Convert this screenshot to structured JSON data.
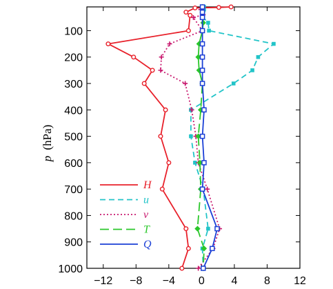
{
  "chart_data": {
    "type": "line",
    "ylabel_var": "p",
    "ylabel_unit": "(hPa)",
    "xlabel": "",
    "xlim": [
      -14,
      12
    ],
    "ylim": [
      1000,
      10
    ],
    "y_reversed": true,
    "xticks": [
      -12,
      -8,
      -4,
      0,
      4,
      8,
      12
    ],
    "yticks": [
      100,
      200,
      300,
      400,
      500,
      600,
      700,
      800,
      900,
      1000
    ],
    "legend_position": "lower-left",
    "series": [
      {
        "name": "H",
        "color": "#e8202a",
        "dash": "solid",
        "marker": "circle",
        "points": [
          {
            "x": 3.6,
            "y": 10
          },
          {
            "x": 2.1,
            "y": 12
          },
          {
            "x": -0.8,
            "y": 14
          },
          {
            "x": -1.9,
            "y": 30
          },
          {
            "x": -1.4,
            "y": 42
          },
          {
            "x": -1.6,
            "y": 100
          },
          {
            "x": -11.4,
            "y": 150
          },
          {
            "x": -8.3,
            "y": 200
          },
          {
            "x": -6.0,
            "y": 250
          },
          {
            "x": -7.0,
            "y": 300
          },
          {
            "x": -4.4,
            "y": 400
          },
          {
            "x": -5.0,
            "y": 500
          },
          {
            "x": -4.0,
            "y": 600
          },
          {
            "x": -4.8,
            "y": 700
          },
          {
            "x": -1.9,
            "y": 850
          },
          {
            "x": -1.6,
            "y": 925
          },
          {
            "x": -2.4,
            "y": 1000
          }
        ]
      },
      {
        "name": "u",
        "color": "#22c4c8",
        "dash": "dash",
        "marker": "square",
        "points": [
          {
            "x": 0.3,
            "y": 10
          },
          {
            "x": 0.3,
            "y": 20
          },
          {
            "x": 0.2,
            "y": 30
          },
          {
            "x": 0.2,
            "y": 50
          },
          {
            "x": 0.8,
            "y": 70
          },
          {
            "x": 0.9,
            "y": 100
          },
          {
            "x": 8.8,
            "y": 150
          },
          {
            "x": 6.9,
            "y": 200
          },
          {
            "x": 6.2,
            "y": 250
          },
          {
            "x": 3.9,
            "y": 300
          },
          {
            "x": -1.3,
            "y": 400
          },
          {
            "x": -1.3,
            "y": 500
          },
          {
            "x": -0.8,
            "y": 600
          },
          {
            "x": 0.2,
            "y": 700
          },
          {
            "x": 0.8,
            "y": 850
          },
          {
            "x": 0.1,
            "y": 925
          },
          {
            "x": 0.2,
            "y": 1000
          }
        ]
      },
      {
        "name": "v",
        "color": "#c8186e",
        "dash": "dot",
        "marker": "plus",
        "points": [
          {
            "x": 0.2,
            "y": 12
          },
          {
            "x": -0.1,
            "y": 20
          },
          {
            "x": 0.2,
            "y": 40
          },
          {
            "x": -1.0,
            "y": 50
          },
          {
            "x": 0.1,
            "y": 100
          },
          {
            "x": -3.9,
            "y": 150
          },
          {
            "x": -4.9,
            "y": 200
          },
          {
            "x": -5.0,
            "y": 250
          },
          {
            "x": -2.0,
            "y": 300
          },
          {
            "x": -1.2,
            "y": 400
          },
          {
            "x": -0.7,
            "y": 500
          },
          {
            "x": -0.4,
            "y": 600
          },
          {
            "x": 0.7,
            "y": 700
          },
          {
            "x": 2.2,
            "y": 850
          },
          {
            "x": 1.4,
            "y": 925
          },
          {
            "x": -0.4,
            "y": 1000
          }
        ]
      },
      {
        "name": "T",
        "color": "#2ac72a",
        "dash": "longdash",
        "marker": "diamond",
        "points": [
          {
            "x": 0.1,
            "y": 10
          },
          {
            "x": 0.1,
            "y": 30
          },
          {
            "x": 0.2,
            "y": 70
          },
          {
            "x": 0.1,
            "y": 100
          },
          {
            "x": -0.3,
            "y": 150
          },
          {
            "x": -0.4,
            "y": 200
          },
          {
            "x": -0.3,
            "y": 250
          },
          {
            "x": 0.1,
            "y": 300
          },
          {
            "x": -0.1,
            "y": 400
          },
          {
            "x": -0.4,
            "y": 500
          },
          {
            "x": -0.2,
            "y": 600
          },
          {
            "x": -0.1,
            "y": 700
          },
          {
            "x": -0.5,
            "y": 850
          },
          {
            "x": 0.3,
            "y": 925
          },
          {
            "x": 0.2,
            "y": 1000
          }
        ]
      },
      {
        "name": "Q",
        "color": "#1a3fd6",
        "dash": "solid",
        "marker": "opensquare",
        "points": [
          {
            "x": 0.1,
            "y": 10
          },
          {
            "x": 0.1,
            "y": 30
          },
          {
            "x": 0.1,
            "y": 50
          },
          {
            "x": 0.1,
            "y": 100
          },
          {
            "x": 0.1,
            "y": 150
          },
          {
            "x": 0.1,
            "y": 200
          },
          {
            "x": 0.1,
            "y": 250
          },
          {
            "x": 0.1,
            "y": 300
          },
          {
            "x": 0.3,
            "y": 400
          },
          {
            "x": 0.1,
            "y": 500
          },
          {
            "x": 0.3,
            "y": 600
          },
          {
            "x": 0.1,
            "y": 700
          },
          {
            "x": 1.9,
            "y": 850
          },
          {
            "x": 1.3,
            "y": 925
          },
          {
            "x": 0.2,
            "y": 1000
          }
        ]
      }
    ]
  }
}
